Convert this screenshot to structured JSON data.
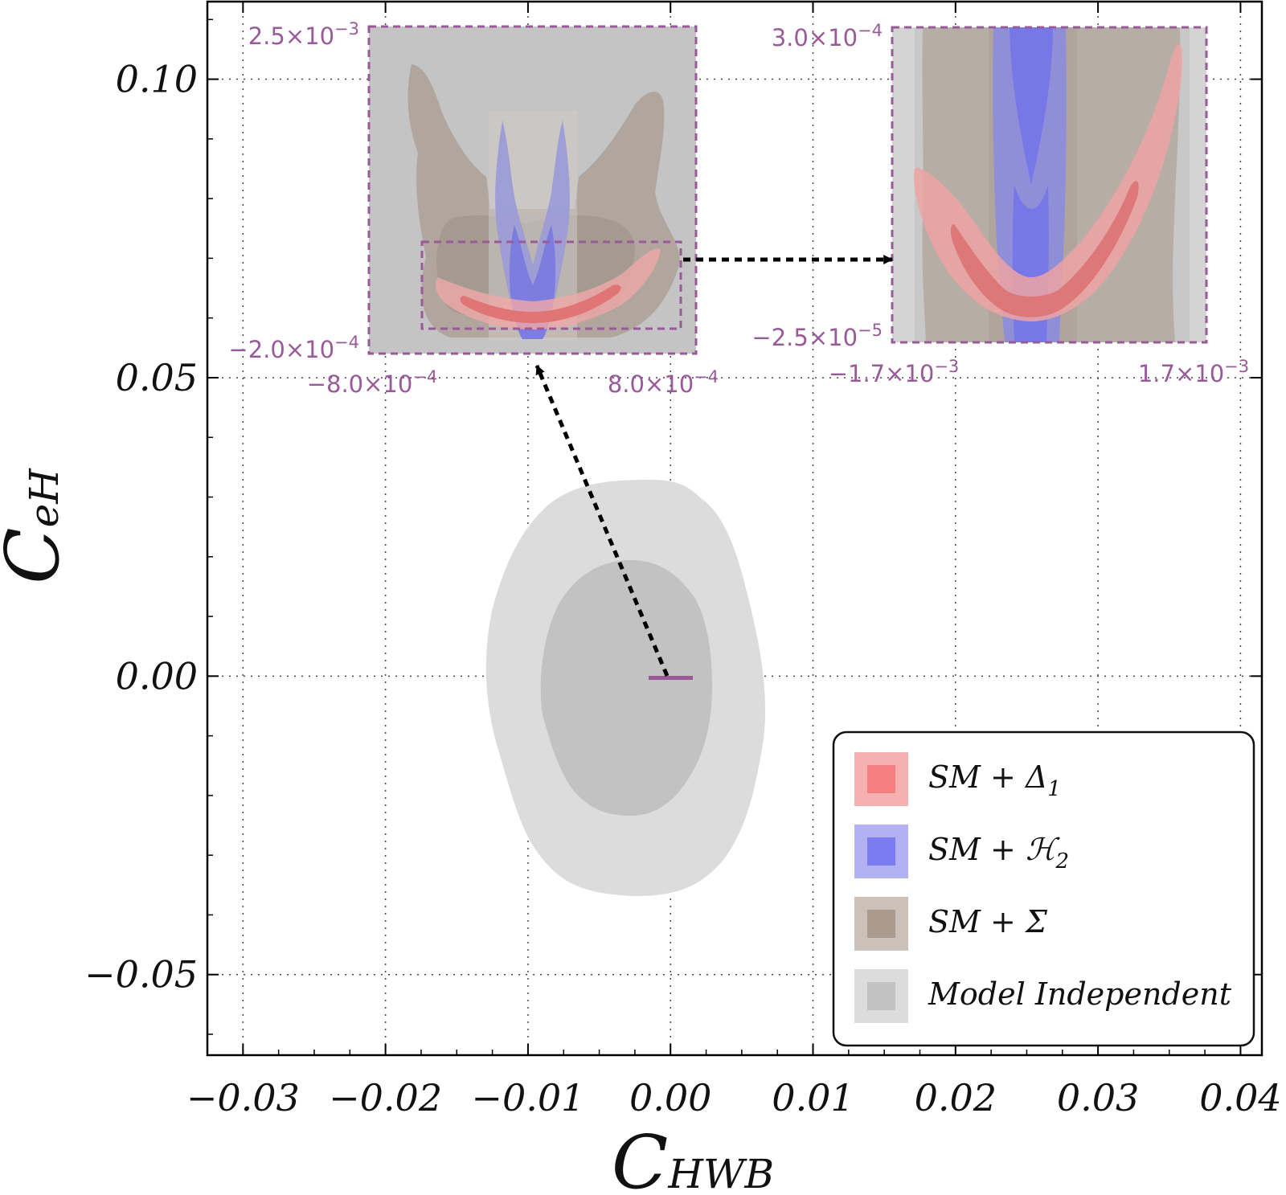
{
  "chart_data": {
    "type": "contour",
    "xlabel": "C_HWB",
    "xlabel_main": "C",
    "xlabel_sub": "HWB",
    "ylabel": "C_eH",
    "ylabel_main": "C",
    "ylabel_sub": "eH",
    "xlim": [
      -0.0325,
      0.0415
    ],
    "ylim": [
      -0.0635,
      0.113
    ],
    "xticks": [
      {
        "value": -0.03,
        "label": "−0.03"
      },
      {
        "value": -0.02,
        "label": "−0.02"
      },
      {
        "value": -0.01,
        "label": "−0.01"
      },
      {
        "value": 0.0,
        "label": "0.00"
      },
      {
        "value": 0.01,
        "label": "0.01"
      },
      {
        "value": 0.02,
        "label": "0.02"
      },
      {
        "value": 0.03,
        "label": "0.03"
      },
      {
        "value": 0.04,
        "label": "0.04"
      }
    ],
    "yticks": [
      {
        "value": -0.05,
        "label": "−0.05"
      },
      {
        "value": 0.0,
        "label": "0.00"
      },
      {
        "value": 0.05,
        "label": "0.05"
      },
      {
        "value": 0.1,
        "label": "0.10"
      }
    ],
    "grid": true,
    "regions": [
      {
        "series": "Model Independent",
        "level": "outer",
        "center": [
          -0.003,
          -0.003
        ],
        "x_extent": [
          -0.0128,
          0.0068
        ],
        "y_extent": [
          -0.0367,
          0.0335
        ]
      },
      {
        "series": "Model Independent",
        "level": "inner",
        "center": [
          -0.0031,
          -0.003
        ],
        "x_extent": [
          -0.0091,
          0.0028
        ],
        "y_extent": [
          -0.0229,
          0.0199
        ]
      }
    ],
    "zoom_marker": {
      "x": [
        -0.0008,
        0.0008
      ],
      "y": [
        -0.0002,
        0.0025
      ]
    },
    "insets": [
      {
        "name": "zoom-1",
        "x_range_labels": [
          "−8.0×10",
          "8.0×10"
        ],
        "x_range_exponents": [
          "−4",
          "−4"
        ],
        "y_range_labels": [
          "−2.0×10",
          "2.5×10"
        ],
        "y_range_exponents": [
          "−4",
          "−3"
        ]
      },
      {
        "name": "zoom-2",
        "x_range_labels": [
          "−1.7×10",
          "1.7×10"
        ],
        "x_range_exponents": [
          "−3",
          "−3"
        ],
        "y_range_labels": [
          "−2.5×10",
          "3.0×10"
        ],
        "y_range_exponents": [
          "−5",
          "−4"
        ]
      }
    ],
    "legend": {
      "placement": "bottom-right",
      "entries": [
        {
          "label_main": "SM + Δ",
          "label_sub": "1",
          "outer": "#f5b0b0",
          "inner": "#f47f7f"
        },
        {
          "label_main": "SM + ℋ",
          "label_sub": "2",
          "outer": "#b2b2f2",
          "inner": "#7b7bf2"
        },
        {
          "label_main": "SM + Σ",
          "label_sub": "",
          "outer": "#cbc1b8",
          "inner": "#ab9b8e"
        },
        {
          "label_main": "Model Independent",
          "label_sub": "",
          "outer": "#dcdcdc",
          "inner": "#c2c2c2"
        }
      ]
    },
    "colors": {
      "red_outer": "#f5b0b0",
      "red_inner": "#f47f7f",
      "blue_outer": "#b2b2f2",
      "blue_inner": "#7b7bf2",
      "brown_outer": "#cbc1b8",
      "brown_inner": "#ab9b8e",
      "gray_outer": "#dcdcdc",
      "gray_inner": "#c2c2c2",
      "inset_accent": "#9a5a9a"
    }
  }
}
